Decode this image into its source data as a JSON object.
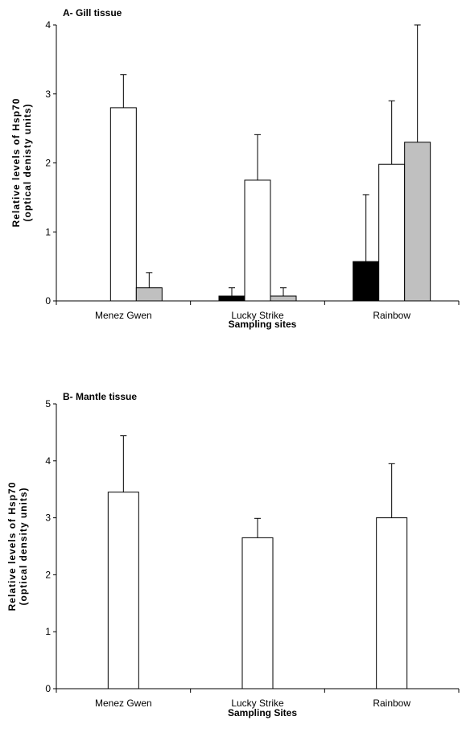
{
  "chart_data": [
    {
      "type": "bar",
      "title": "A- Gill tissue",
      "xlabel": "Sampling sites",
      "ylabel": [
        "Relative levels of Hsp70",
        "(optical denisty units)"
      ],
      "ylim": [
        0,
        4
      ],
      "yticks": [
        0,
        1,
        2,
        3,
        4
      ],
      "grid": false,
      "categories": [
        "Menez Gwen",
        "Lucky Strike",
        "Rainbow"
      ],
      "series": [
        {
          "values": [
            0,
            0.07,
            0.57
          ],
          "errors": [
            0,
            0.12,
            0.97
          ],
          "color": "#000000"
        },
        {
          "values": [
            2.8,
            1.75,
            1.98
          ],
          "errors": [
            0.48,
            0.66,
            0.92
          ],
          "color": "#ffffff"
        },
        {
          "values": [
            0.19,
            0.07,
            2.3
          ],
          "errors": [
            0.22,
            0.12,
            1.7
          ],
          "color": "#c0c0c0"
        }
      ]
    },
    {
      "type": "bar",
      "title": "B- Mantle tissue",
      "xlabel": "Sampling Sites",
      "ylabel": [
        "Relative levels of Hsp70",
        "(optical density units)"
      ],
      "ylim": [
        0,
        5
      ],
      "yticks": [
        0,
        1,
        2,
        3,
        4,
        5
      ],
      "grid": false,
      "categories": [
        "Menez Gwen",
        "Lucky Strike",
        "Rainbow"
      ],
      "series": [
        {
          "values": [
            3.45,
            2.65,
            3.0
          ],
          "errors": [
            0.99,
            0.34,
            0.95
          ],
          "color": "#ffffff"
        }
      ]
    }
  ]
}
